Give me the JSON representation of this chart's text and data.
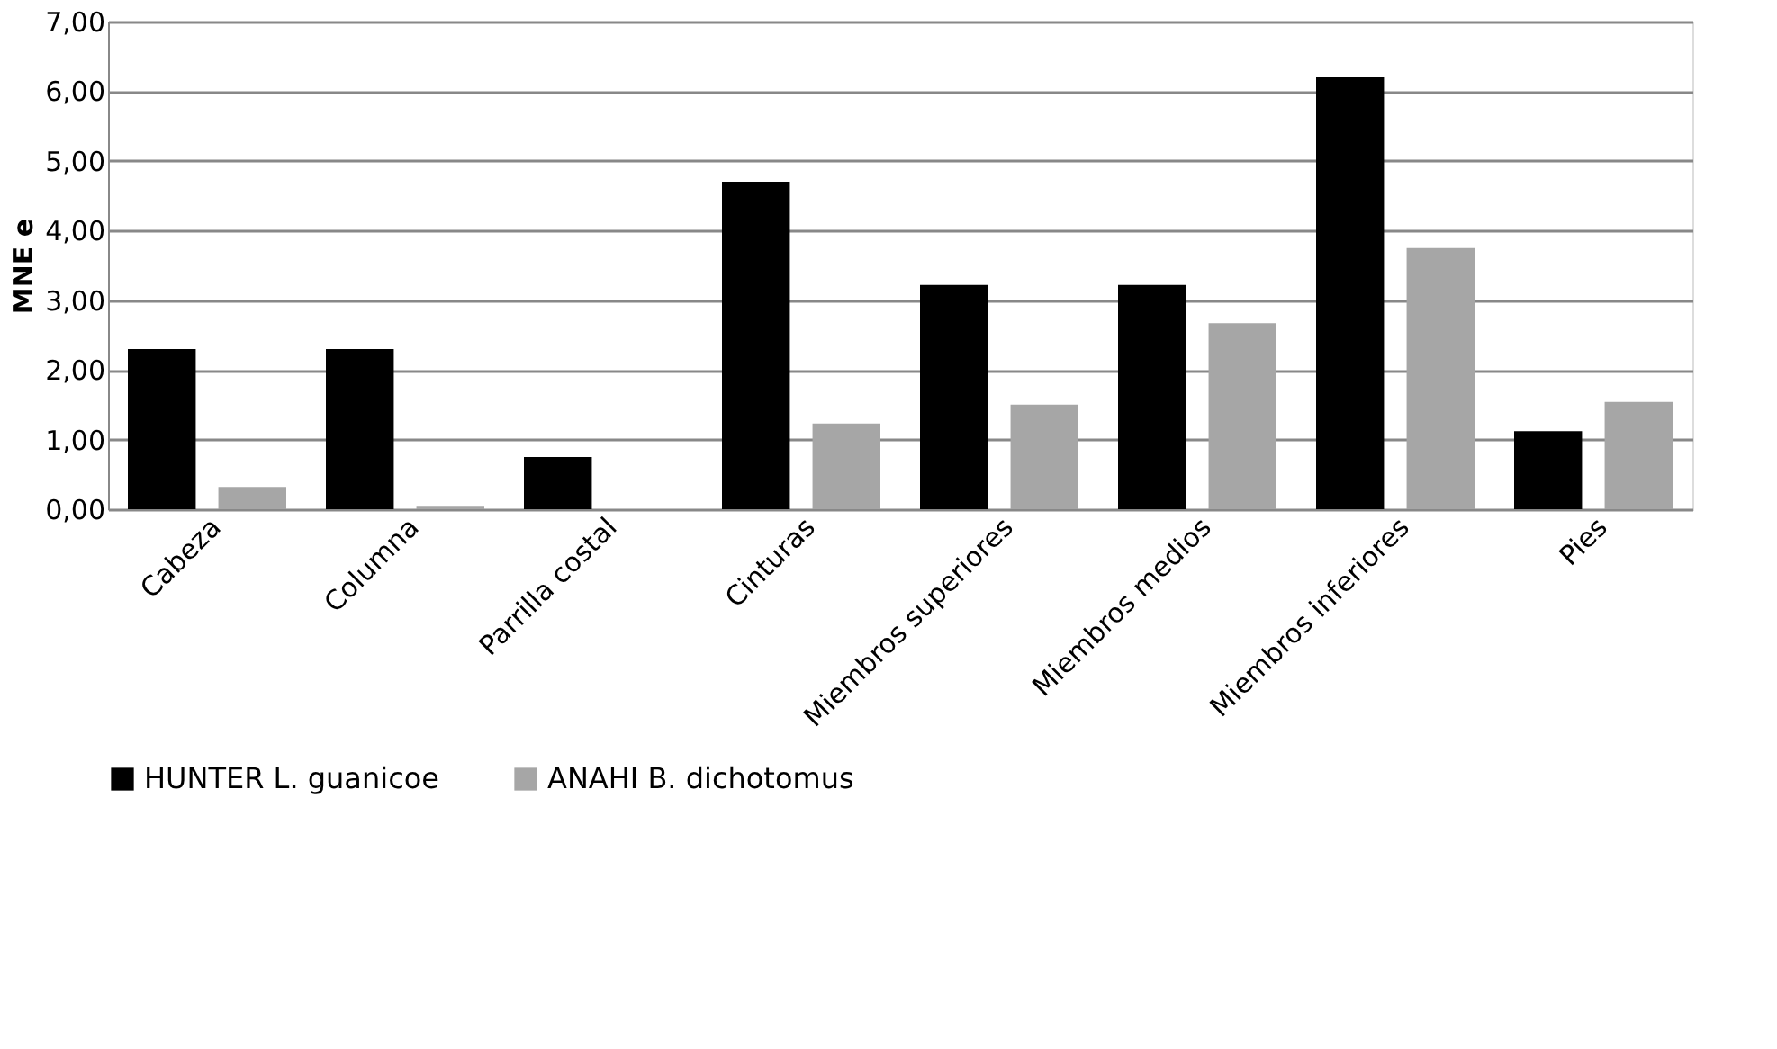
{
  "chart_data": {
    "type": "bar",
    "ylabel": "MNE e",
    "categories": [
      "Cabeza",
      "Columna",
      "Parrilla costal",
      "Cinturas",
      "Miembros superiores",
      "Miembros medios",
      "Miembros inferiores",
      "Pies"
    ],
    "series": [
      {
        "name": "HUNTER L. guanicoe",
        "color": "#000000",
        "values": [
          2.3,
          2.3,
          0.75,
          4.7,
          3.22,
          3.22,
          6.2,
          1.12
        ]
      },
      {
        "name": "ANAHI B. dichotomus",
        "color": "#a6a6a6",
        "values": [
          0.32,
          0.05,
          0,
          1.23,
          1.5,
          2.67,
          3.75,
          1.54
        ]
      }
    ],
    "ylim": [
      0,
      7
    ],
    "yticks": [
      {
        "value": 0,
        "label": "0,00"
      },
      {
        "value": 1,
        "label": "1,00"
      },
      {
        "value": 2,
        "label": "2,00"
      },
      {
        "value": 3,
        "label": "3,00"
      },
      {
        "value": 4,
        "label": "4,00"
      },
      {
        "value": 5,
        "label": "5,00"
      },
      {
        "value": 6,
        "label": "6,00"
      },
      {
        "value": 7,
        "label": "7,00"
      }
    ],
    "grid": "y",
    "legend": "bottom"
  }
}
